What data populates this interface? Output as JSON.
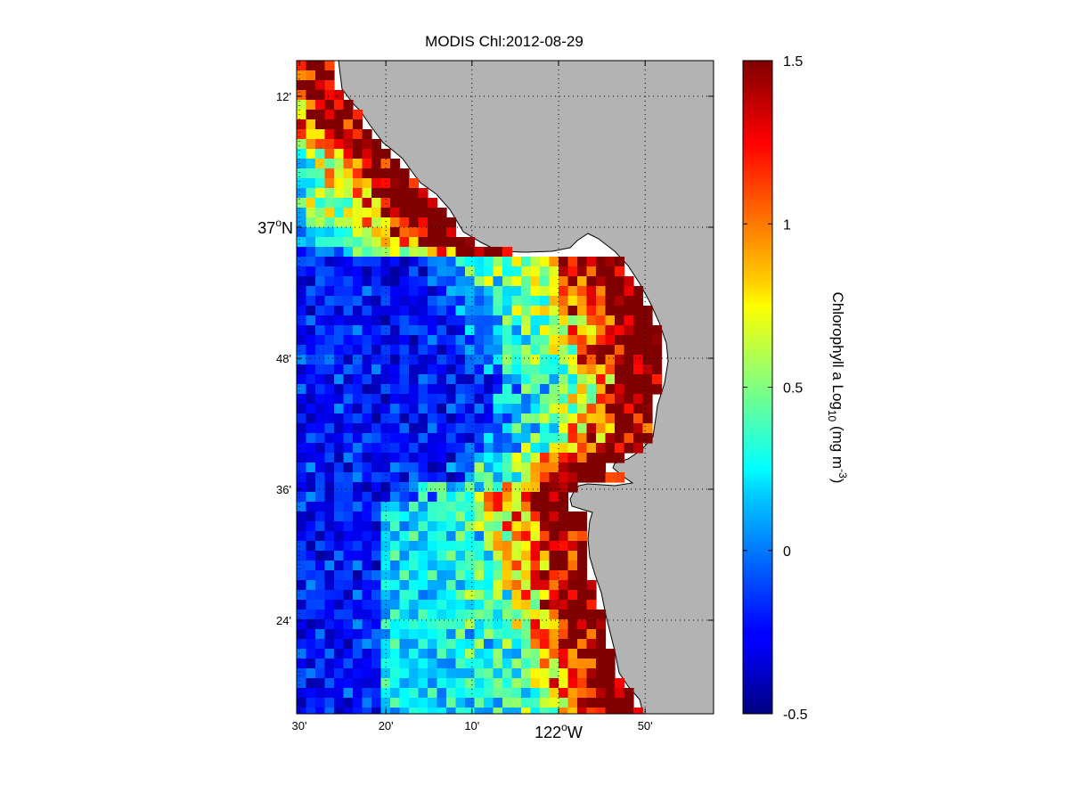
{
  "title": "MODIS Chl:2012-08-29",
  "map": {
    "lat_ticks": [
      {
        "label": "12'",
        "lat": 37.2,
        "major": false
      },
      {
        "label": "37",
        "lat": 37.0,
        "major": true,
        "suffix": "N"
      },
      {
        "label": "48'",
        "lat": 36.8,
        "major": false
      },
      {
        "label": "36'",
        "lat": 36.6,
        "major": false
      },
      {
        "label": "24'",
        "lat": 36.4,
        "major": false
      }
    ],
    "lon_ticks": [
      {
        "label": "30'",
        "lon": -122.5,
        "major": false
      },
      {
        "label": "20'",
        "lon": -122.333,
        "major": false
      },
      {
        "label": "10'",
        "lon": -122.167,
        "major": false
      },
      {
        "label": "122",
        "lon": -122.0,
        "major": true,
        "suffix": "W"
      },
      {
        "label": "50'",
        "lon": -121.833,
        "major": false
      }
    ],
    "degree_symbol": "o",
    "land_color": "#b3b3b3",
    "nodata_color": "#ffffff",
    "grid": true,
    "grid_style": "dotted"
  },
  "colorbar": {
    "label_prefix": "Chlorophyll a Log",
    "label_sub": "10",
    "label_unit_prefix": "(mg m",
    "label_unit_sup": "-3",
    "label_unit_suffix": ")",
    "min": -0.5,
    "max": 1.5,
    "ticks": [
      "1.5",
      "1",
      "0.5",
      "0",
      "-0.5"
    ],
    "colormap": "jet"
  }
}
